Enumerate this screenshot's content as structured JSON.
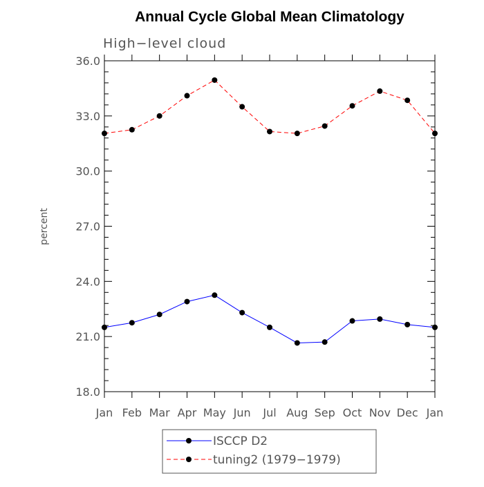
{
  "chart_data": {
    "type": "line",
    "title": "Annual Cycle Global Mean Climatology",
    "subtitle": "High−level cloud",
    "xlabel": "",
    "ylabel": "percent",
    "categories": [
      "Jan",
      "Feb",
      "Mar",
      "Apr",
      "May",
      "Jun",
      "Jul",
      "Aug",
      "Sep",
      "Oct",
      "Nov",
      "Dec",
      "Jan"
    ],
    "ylim": [
      18.0,
      36.0
    ],
    "yticks": [
      "18.0",
      "21.0",
      "24.0",
      "27.0",
      "30.0",
      "33.0",
      "36.0"
    ],
    "grid": false,
    "legend_position": "bottom",
    "series": [
      {
        "name": "ISCCP D2",
        "color": "#0000ff",
        "dash": "solid",
        "marker": "filled-circle",
        "values": [
          21.5,
          21.75,
          22.2,
          22.9,
          23.25,
          22.3,
          21.5,
          20.65,
          20.7,
          21.85,
          21.95,
          21.65,
          21.5
        ]
      },
      {
        "name": "tuning2 (1979−1979)",
        "color": "#ff0000",
        "dash": "dashed",
        "marker": "filled-circle",
        "values": [
          32.05,
          32.25,
          33.0,
          34.1,
          34.95,
          33.5,
          32.15,
          32.05,
          32.45,
          33.55,
          34.35,
          33.85,
          32.05
        ]
      }
    ]
  }
}
